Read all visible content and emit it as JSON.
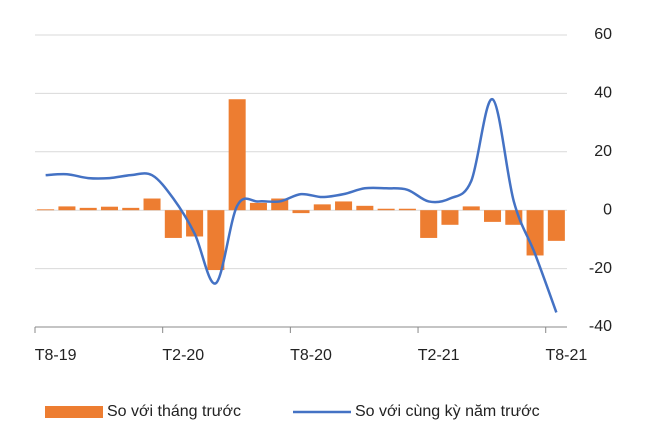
{
  "chart_data": {
    "type": "bar-line",
    "categories": [
      "T8-19",
      null,
      null,
      null,
      null,
      null,
      "T2-20",
      null,
      null,
      null,
      null,
      null,
      "T8-20",
      null,
      null,
      null,
      null,
      null,
      "T2-21",
      null,
      null,
      null,
      null,
      null,
      "T8-21"
    ],
    "series": [
      {
        "name": "So với tháng trước",
        "type": "bar",
        "color": "#ed7d31",
        "values": [
          0.3,
          1.3,
          0.8,
          1.2,
          0.8,
          4,
          -9.5,
          -9,
          -20.5,
          38,
          2.5,
          4,
          -1,
          2,
          3,
          1.5,
          0.5,
          0.5,
          -9.5,
          -5,
          1.3,
          -4,
          -5,
          -15.5,
          -10.5
        ]
      },
      {
        "name": "So với cùng kỳ năm trước",
        "type": "line",
        "color": "#4472c4",
        "values": [
          12,
          12.3,
          11,
          11,
          12,
          12,
          4,
          -8,
          -25,
          1.5,
          3,
          3,
          5.5,
          4.5,
          5.5,
          7.5,
          7.5,
          7,
          3,
          4,
          10,
          38,
          3,
          -15,
          -35
        ]
      }
    ],
    "ylim": [
      -40,
      60
    ],
    "yticks": [
      -40,
      -20,
      0,
      20,
      40,
      60
    ],
    "grid": true,
    "legend": "bottom"
  }
}
